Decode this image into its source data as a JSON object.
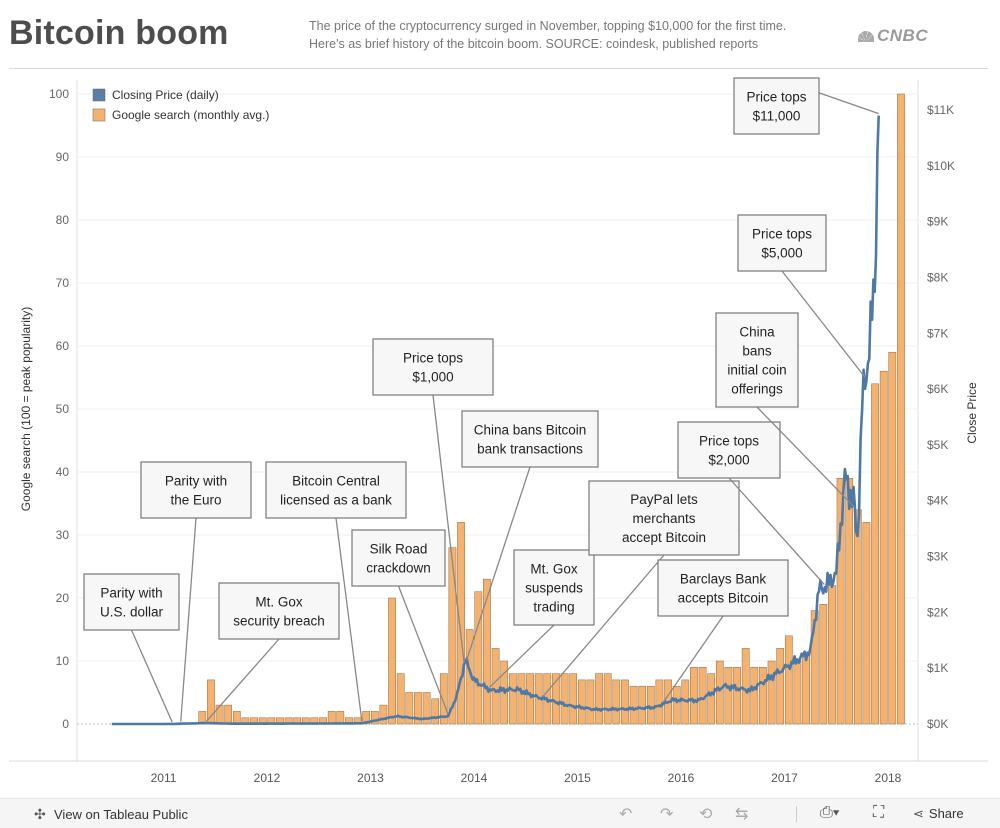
{
  "header": {
    "title": "Bitcoin boom",
    "subtitle_line1": "The price of the cryptocurrency surged in November, topping $10,000 for the first time.",
    "subtitle_line2": "Here's as brief history of the bitcoin boom. SOURCE: coindesk, published reports",
    "logo": "CNBC"
  },
  "footer": {
    "view_label": "View on Tableau Public",
    "share_label": "Share",
    "icons": [
      "undo-icon",
      "redo-icon",
      "revert-icon",
      "refresh-icon",
      "download-icon",
      "fullscreen-icon",
      "share-icon"
    ]
  },
  "chart_data": {
    "type": "bar+line",
    "legend": [
      {
        "name": "Closing Price (daily)",
        "color": "#5b7fa6"
      },
      {
        "name": "Google search (monthly avg.)",
        "color": "#f4b26e"
      }
    ],
    "legend_position": "top-left",
    "ylabel_left": "Google search (100 = peak popularity)",
    "ylabel_right": "Close Price",
    "ylim_left": [
      0,
      100
    ],
    "left_ticks": [
      0,
      10,
      20,
      30,
      40,
      50,
      60,
      70,
      80,
      90,
      100
    ],
    "ylim_right": [
      0,
      11255
    ],
    "right_ticks": [
      {
        "v": 0,
        "label": "$0K"
      },
      {
        "v": 1000,
        "label": "$1K"
      },
      {
        "v": 2000,
        "label": "$2K"
      },
      {
        "v": 3000,
        "label": "$3K"
      },
      {
        "v": 4000,
        "label": "$4K"
      },
      {
        "v": 5000,
        "label": "$5K"
      },
      {
        "v": 6000,
        "label": "$6K"
      },
      {
        "v": 7000,
        "label": "$7K"
      },
      {
        "v": 8000,
        "label": "$8K"
      },
      {
        "v": 9000,
        "label": "$9K"
      },
      {
        "v": 10000,
        "label": "$10K"
      },
      {
        "v": 11000,
        "label": "$11K"
      }
    ],
    "x_ticks": [
      "2011",
      "2012",
      "2013",
      "2014",
      "2015",
      "2016",
      "2017",
      "2018"
    ],
    "grid": true,
    "search_bars": {
      "start_month": "2011-05",
      "values": [
        2,
        7,
        3,
        3,
        2,
        1,
        1,
        1,
        1,
        1,
        1,
        1,
        1,
        1,
        1,
        2,
        2,
        1,
        1,
        2,
        2,
        3,
        20,
        8,
        5,
        5,
        5,
        4,
        8,
        28,
        32,
        15,
        21,
        23,
        12,
        10,
        8,
        8,
        8,
        8,
        8,
        8,
        8,
        8,
        7,
        7,
        8,
        8,
        7,
        7,
        6,
        6,
        6,
        7,
        7,
        6,
        7,
        9,
        9,
        8,
        10,
        9,
        9,
        12,
        9,
        9,
        10,
        12,
        14,
        10,
        11,
        18,
        19,
        22,
        39,
        39,
        34,
        32,
        54,
        56,
        59,
        100
      ]
    },
    "price_series": [
      {
        "t": "2010-07",
        "v": 0.06
      },
      {
        "t": "2011-02",
        "v": 1
      },
      {
        "t": "2011-06",
        "v": 17
      },
      {
        "t": "2011-09",
        "v": 6
      },
      {
        "t": "2012-06",
        "v": 7
      },
      {
        "t": "2012-12",
        "v": 13
      },
      {
        "t": "2013-04",
        "v": 140
      },
      {
        "t": "2013-07",
        "v": 90
      },
      {
        "t": "2013-10",
        "v": 140
      },
      {
        "t": "2013-11",
        "v": 500
      },
      {
        "t": "2013-12",
        "v": 1150
      },
      {
        "t": "2014-01",
        "v": 780
      },
      {
        "t": "2014-03",
        "v": 600
      },
      {
        "t": "2014-06",
        "v": 620
      },
      {
        "t": "2014-08",
        "v": 500
      },
      {
        "t": "2014-12",
        "v": 330
      },
      {
        "t": "2015-03",
        "v": 260
      },
      {
        "t": "2015-07",
        "v": 270
      },
      {
        "t": "2015-10",
        "v": 300
      },
      {
        "t": "2015-12",
        "v": 430
      },
      {
        "t": "2016-03",
        "v": 420
      },
      {
        "t": "2016-06",
        "v": 680
      },
      {
        "t": "2016-09",
        "v": 600
      },
      {
        "t": "2016-12",
        "v": 900
      },
      {
        "t": "2017-02",
        "v": 1100
      },
      {
        "t": "2017-04",
        "v": 1300
      },
      {
        "t": "2017-05",
        "v": 2400
      },
      {
        "t": "2017-06",
        "v": 2500
      },
      {
        "t": "2017-07",
        "v": 2700
      },
      {
        "t": "2017-08",
        "v": 4400
      },
      {
        "t": "2017-09",
        "v": 4000
      },
      {
        "t": "2017-09-15",
        "v": 3300
      },
      {
        "t": "2017-10",
        "v": 5700
      },
      {
        "t": "2017-11",
        "v": 7000
      },
      {
        "t": "2017-11-15",
        "v": 8000
      },
      {
        "t": "2017-11-29",
        "v": 10900
      }
    ],
    "annotations": [
      {
        "lines": [
          "Parity with",
          "U.S. dollar"
        ],
        "target": "2011-02"
      },
      {
        "lines": [
          "Parity with",
          "the Euro"
        ],
        "target": "2011-03"
      },
      {
        "lines": [
          "Mt. Gox",
          "security breach"
        ],
        "target": "2011-06"
      },
      {
        "lines": [
          "Bitcoin Central",
          "licensed as a bank"
        ],
        "target": "2012-12"
      },
      {
        "lines": [
          "Silk Road",
          "crackdown"
        ],
        "target": "2013-10"
      },
      {
        "lines": [
          "Price tops",
          "$1,000"
        ],
        "target": "2013-11-27"
      },
      {
        "lines": [
          "China bans Bitcoin",
          "bank transactions"
        ],
        "target": "2013-12-05"
      },
      {
        "lines": [
          "Mt. Gox",
          "suspends",
          "trading"
        ],
        "target": "2014-02-25"
      },
      {
        "lines": [
          "PayPal lets",
          "merchants",
          "accept Bitcoin"
        ],
        "target": "2014-09"
      },
      {
        "lines": [
          "Barclays Bank",
          "accepts Bitcoin"
        ],
        "target": "2015-11"
      },
      {
        "lines": [
          "Price tops",
          "$2,000"
        ],
        "target": "2017-05-20"
      },
      {
        "lines": [
          "China",
          "bans",
          "initial coin",
          "offerings"
        ],
        "target": "2017-09-04"
      },
      {
        "lines": [
          "Price tops",
          "$5,000"
        ],
        "target": "2017-10-12"
      },
      {
        "lines": [
          "Price tops",
          "$11,000"
        ],
        "target": "2017-11-29"
      }
    ]
  }
}
